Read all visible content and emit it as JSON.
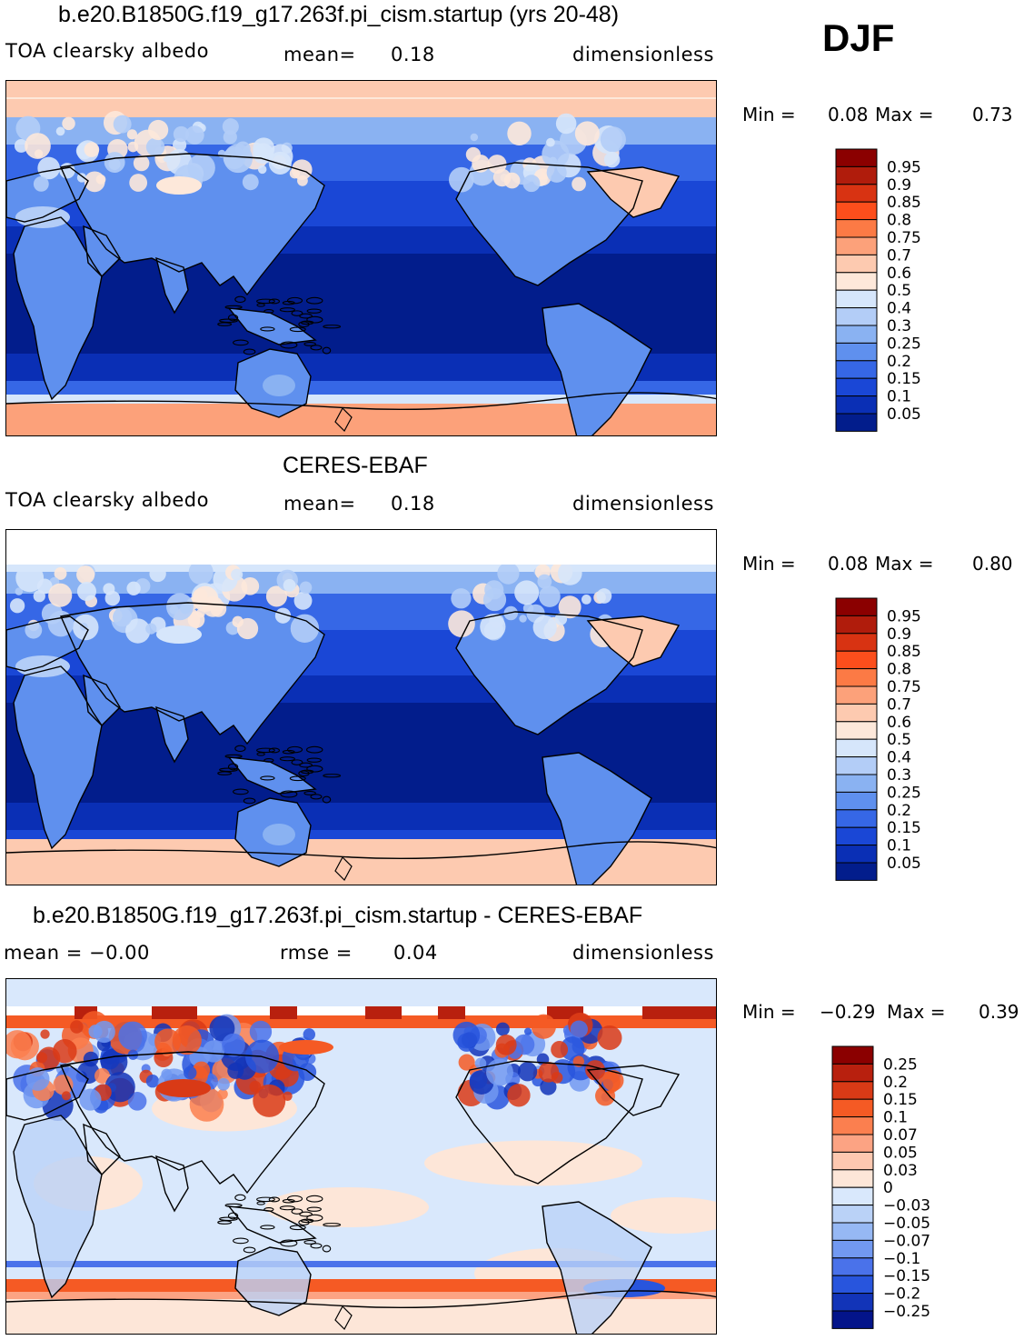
{
  "season": "DJF",
  "panels": [
    {
      "title": "b.e20.B1850G.f19_g17.263f.pi_cism.startup (yrs 20-48)",
      "left_label": "TOA  clearsky  albedo",
      "mid_label": "mean=",
      "mid_value": "0.18",
      "units": "dimensionless",
      "min_label": "Min  =",
      "min_value": "0.08",
      "max_label": "Max  =",
      "max_value": "0.73",
      "kind": "field",
      "colorbar": [
        "0.95",
        "0.9",
        "0.85",
        "0.8",
        "0.75",
        "0.7",
        "0.6",
        "0.5",
        "0.4",
        "0.3",
        "0.25",
        "0.2",
        "0.15",
        "0.1",
        "0.05"
      ]
    },
    {
      "title": "CERES-EBAF",
      "left_label": "TOA  clearsky  albedo",
      "mid_label": "mean=",
      "mid_value": "0.18",
      "units": "dimensionless",
      "min_label": "Min  =",
      "min_value": "0.08",
      "max_label": "Max  =",
      "max_value": "0.80",
      "kind": "obs",
      "colorbar": [
        "0.95",
        "0.9",
        "0.85",
        "0.8",
        "0.75",
        "0.7",
        "0.6",
        "0.5",
        "0.4",
        "0.3",
        "0.25",
        "0.2",
        "0.15",
        "0.1",
        "0.05"
      ]
    },
    {
      "title": "b.e20.B1850G.f19_g17.263f.pi_cism.startup - CERES-EBAF",
      "left_label": "mean  =    −0.00",
      "mid_label": "rmse  =",
      "mid_value": "0.04",
      "units": "dimensionless",
      "min_label": "Min  =",
      "min_value": "−0.29",
      "max_label": "Max  =",
      "max_value": "0.39",
      "kind": "diff",
      "colorbar": [
        "0.25",
        "0.2",
        "0.15",
        "0.1",
        "0.07",
        "0.05",
        "0.03",
        "0",
        "−0.03",
        "−0.05",
        "−0.07",
        "−0.1",
        "−0.15",
        "−0.2",
        "−0.25"
      ]
    }
  ],
  "colors": {
    "field_scale": [
      "#8b0000",
      "#b01c0c",
      "#d83312",
      "#fc4e1c",
      "#fc7a45",
      "#fca17a",
      "#fdcab0",
      "#fde8da",
      "#d6e6fb",
      "#b3cdf7",
      "#8ab2f2",
      "#5f90ee",
      "#3667e6",
      "#1a47d6",
      "#0a2fb5",
      "#021d8c"
    ],
    "diff_scale": [
      "#8b0000",
      "#b8200e",
      "#d93a16",
      "#f55a24",
      "#fb7f4f",
      "#fca383",
      "#fdc8b0",
      "#fde6d8",
      "#d9e8fc",
      "#bad2f7",
      "#96b8f4",
      "#7299f1",
      "#4a72ea",
      "#2855dd",
      "#1234b8",
      "#03148a"
    ],
    "land_edge": "#000000"
  }
}
